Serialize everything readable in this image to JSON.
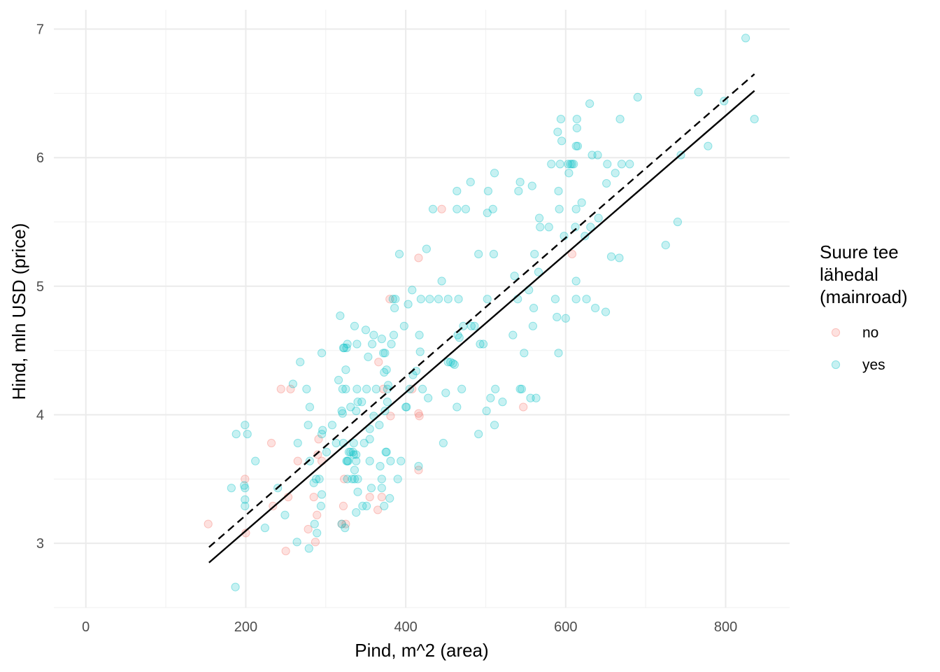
{
  "chart_data": {
    "type": "scatter",
    "xlabel": "Pind, m^2 (area)",
    "ylabel": "Hind, mln USD (price)",
    "xlim": [
      -40,
      880
    ],
    "ylim": [
      2.5,
      7.15
    ],
    "x_ticks": [
      0,
      200,
      400,
      600,
      800
    ],
    "x_tick_labels": [
      "0",
      "200",
      "400",
      "600",
      "800"
    ],
    "y_ticks": [
      3,
      4,
      5,
      6,
      7
    ],
    "y_tick_labels": [
      "3",
      "4",
      "5",
      "6",
      "7"
    ],
    "grid": true,
    "legend": {
      "title": [
        "Suure tee",
        "lähedal",
        "(mainroad)"
      ],
      "placement": "right",
      "entries": [
        {
          "label": "no",
          "color": "#F8766D"
        },
        {
          "label": "yes",
          "color": "#00BFC4"
        }
      ]
    },
    "lines": [
      {
        "style": "dashed",
        "color": "#000000",
        "x": [
          154,
          836
        ],
        "y": [
          2.97,
          6.65
        ]
      },
      {
        "style": "solid",
        "color": "#000000",
        "x": [
          154,
          836
        ],
        "y": [
          2.85,
          6.52
        ]
      }
    ],
    "series": [
      {
        "name": "no",
        "color": "#F8766D",
        "points": [
          [
            153,
            3.15
          ],
          [
            200,
            3.08
          ],
          [
            199,
            3.5
          ],
          [
            232,
            3.78
          ],
          [
            234,
            3.29
          ],
          [
            244,
            4.2
          ],
          [
            256,
            4.2
          ],
          [
            250,
            2.94
          ],
          [
            253,
            3.36
          ],
          [
            265,
            3.64
          ],
          [
            278,
            3.11
          ],
          [
            285,
            3.36
          ],
          [
            287,
            3.01
          ],
          [
            289,
            3.22
          ],
          [
            291,
            3.81
          ],
          [
            290,
            3.69
          ],
          [
            295,
            3.64
          ],
          [
            320,
            3.15
          ],
          [
            322,
            3.29
          ],
          [
            323,
            3.5
          ],
          [
            325,
            3.15
          ],
          [
            355,
            3.36
          ],
          [
            365,
            3.26
          ],
          [
            370,
            3.36
          ],
          [
            366,
            4.41
          ],
          [
            372,
            4.2
          ],
          [
            380,
            4.9
          ],
          [
            381,
            3.99
          ],
          [
            408,
            4.2
          ],
          [
            416,
            5.22
          ],
          [
            417,
            3.99
          ],
          [
            416,
            4.01
          ],
          [
            416,
            3.57
          ],
          [
            445,
            5.6
          ],
          [
            547,
            4.06
          ],
          [
            608,
            5.25
          ]
        ]
      },
      {
        "name": "yes",
        "color": "#00BFC4",
        "points": [
          [
            187,
            2.66
          ],
          [
            182,
            3.43
          ],
          [
            188,
            3.85
          ],
          [
            199,
            3.29
          ],
          [
            199,
            3.34
          ],
          [
            198,
            3.45
          ],
          [
            199,
            3.43
          ],
          [
            199,
            3.92
          ],
          [
            202,
            3.85
          ],
          [
            212,
            3.64
          ],
          [
            224,
            3.12
          ],
          [
            240,
            3.43
          ],
          [
            249,
            3.22
          ],
          [
            259,
            4.24
          ],
          [
            264,
            3.01
          ],
          [
            265,
            3.78
          ],
          [
            268,
            4.41
          ],
          [
            276,
            4.2
          ],
          [
            278,
            3.92
          ],
          [
            280,
            4.06
          ],
          [
            279,
            2.96
          ],
          [
            280,
            3.64
          ],
          [
            285,
            3.47
          ],
          [
            286,
            3.15
          ],
          [
            288,
            3.5
          ],
          [
            289,
            3.08
          ],
          [
            292,
            3.5
          ],
          [
            294,
            3.29
          ],
          [
            295,
            3.38
          ],
          [
            295,
            3.85
          ],
          [
            296,
            3.88
          ],
          [
            295,
            4.48
          ],
          [
            301,
            3.71
          ],
          [
            308,
            3.92
          ],
          [
            313,
            3.78
          ],
          [
            316,
            4.27
          ],
          [
            318,
            4.77
          ],
          [
            320,
            3.15
          ],
          [
            320,
            4.03
          ],
          [
            321,
            4.01
          ],
          [
            321,
            4.2
          ],
          [
            322,
            4.52
          ],
          [
            322,
            3.78
          ],
          [
            323,
            4.52
          ],
          [
            324,
            3.12
          ],
          [
            325,
            4.35
          ],
          [
            325,
            4.2
          ],
          [
            326,
            3.64
          ],
          [
            327,
            3.64
          ],
          [
            326,
            4.52
          ],
          [
            327,
            4.55
          ],
          [
            327,
            3.5
          ],
          [
            328,
            3.64
          ],
          [
            329,
            3.71
          ],
          [
            331,
            4.06
          ],
          [
            331,
            3.71
          ],
          [
            333,
            3.5
          ],
          [
            334,
            3.71
          ],
          [
            335,
            3.78
          ],
          [
            335,
            3.69
          ],
          [
            336,
            4.69
          ],
          [
            336,
            3.57
          ],
          [
            336,
            3.5
          ],
          [
            338,
            3.64
          ],
          [
            338,
            3.69
          ],
          [
            338,
            3.24
          ],
          [
            338,
            4.03
          ],
          [
            339,
            4.55
          ],
          [
            339,
            4.2
          ],
          [
            340,
            3.4
          ],
          [
            340,
            3.5
          ],
          [
            340,
            4.1
          ],
          [
            346,
            3.29
          ],
          [
            345,
            4.1
          ],
          [
            348,
            3.78
          ],
          [
            350,
            4.66
          ],
          [
            351,
            4.2
          ],
          [
            351,
            3.29
          ],
          [
            353,
            4.45
          ],
          [
            355,
            3.81
          ],
          [
            355,
            3.89
          ],
          [
            355,
            3.64
          ],
          [
            357,
            3.43
          ],
          [
            358,
            4.55
          ],
          [
            360,
            4.62
          ],
          [
            360,
            3.99
          ],
          [
            363,
            4.2
          ],
          [
            367,
            3.92
          ],
          [
            368,
            3.6
          ],
          [
            370,
            4.59
          ],
          [
            370,
            3.5
          ],
          [
            370,
            3.43
          ],
          [
            372,
            4.48
          ],
          [
            373,
            4.33
          ],
          [
            373,
            3.29
          ],
          [
            374,
            4.48
          ],
          [
            374,
            4.03
          ],
          [
            375,
            3.71
          ],
          [
            376,
            3.71
          ],
          [
            376,
            4.35
          ],
          [
            377,
            4.1
          ],
          [
            377,
            4.2
          ],
          [
            378,
            4.23
          ],
          [
            380,
            3.35
          ],
          [
            381,
            3.64
          ],
          [
            382,
            4.55
          ],
          [
            384,
            4.9
          ],
          [
            385,
            4.62
          ],
          [
            386,
            4.83
          ],
          [
            387,
            4.9
          ],
          [
            390,
            3.5
          ],
          [
            392,
            5.25
          ],
          [
            394,
            3.64
          ],
          [
            398,
            4.69
          ],
          [
            400,
            4.06
          ],
          [
            401,
            4.06
          ],
          [
            403,
            4.86
          ],
          [
            405,
            4.2
          ],
          [
            408,
            4.97
          ],
          [
            409,
            4.31
          ],
          [
            413,
            4.34
          ],
          [
            416,
            3.6
          ],
          [
            417,
            4.62
          ],
          [
            418,
            4.49
          ],
          [
            419,
            4.9
          ],
          [
            421,
            4.2
          ],
          [
            426,
            5.29
          ],
          [
            428,
            4.13
          ],
          [
            430,
            4.9
          ],
          [
            434,
            5.6
          ],
          [
            441,
            4.9
          ],
          [
            445,
            5.04
          ],
          [
            447,
            3.78
          ],
          [
            450,
            4.17
          ],
          [
            453,
            4.9
          ],
          [
            453,
            4.41
          ],
          [
            456,
            4.41
          ],
          [
            459,
            4.4
          ],
          [
            461,
            4.39
          ],
          [
            464,
            4.06
          ],
          [
            464,
            5.6
          ],
          [
            464,
            5.74
          ],
          [
            465,
            4.62
          ],
          [
            466,
            4.9
          ],
          [
            467,
            4.6
          ],
          [
            470,
            4.2
          ],
          [
            472,
            4.69
          ],
          [
            475,
            5.6
          ],
          [
            481,
            5.81
          ],
          [
            482,
            4.69
          ],
          [
            486,
            4.69
          ],
          [
            491,
            3.85
          ],
          [
            491,
            5.25
          ],
          [
            493,
            4.55
          ],
          [
            497,
            4.55
          ],
          [
            501,
            4.03
          ],
          [
            502,
            4.9
          ],
          [
            502,
            5.57
          ],
          [
            503,
            5.74
          ],
          [
            506,
            4.13
          ],
          [
            509,
            5.6
          ],
          [
            510,
            5.25
          ],
          [
            511,
            3.92
          ],
          [
            511,
            5.88
          ],
          [
            512,
            4.2
          ],
          [
            521,
            4.1
          ],
          [
            534,
            4.62
          ],
          [
            536,
            5.08
          ],
          [
            540,
            4.9
          ],
          [
            541,
            5.74
          ],
          [
            543,
            4.2
          ],
          [
            543,
            5.81
          ],
          [
            545,
            4.2
          ],
          [
            548,
            4.48
          ],
          [
            554,
            4.97
          ],
          [
            556,
            4.13
          ],
          [
            558,
            5.78
          ],
          [
            559,
            4.69
          ],
          [
            560,
            4.83
          ],
          [
            561,
            5.25
          ],
          [
            563,
            4.13
          ],
          [
            566,
            5.11
          ],
          [
            567,
            5.53
          ],
          [
            568,
            5.46
          ],
          [
            579,
            5.46
          ],
          [
            582,
            5.95
          ],
          [
            587,
            4.9
          ],
          [
            589,
            4.76
          ],
          [
            590,
            6.2
          ],
          [
            591,
            5.74
          ],
          [
            591,
            4.48
          ],
          [
            592,
            5.6
          ],
          [
            593,
            5.95
          ],
          [
            594,
            6.3
          ],
          [
            595,
            6.13
          ],
          [
            598,
            5.39
          ],
          [
            600,
            4.75
          ],
          [
            603,
            5.95
          ],
          [
            604,
            5.88
          ],
          [
            606,
            5.95
          ],
          [
            608,
            5.95
          ],
          [
            610,
            5.95
          ],
          [
            612,
            5.46
          ],
          [
            613,
            5.6
          ],
          [
            613,
            4.9
          ],
          [
            613,
            6.09
          ],
          [
            614,
            6.23
          ],
          [
            614,
            6.3
          ],
          [
            615,
            6.09
          ],
          [
            613,
            5.04
          ],
          [
            620,
            5.65
          ],
          [
            624,
            5.39
          ],
          [
            626,
            4.9
          ],
          [
            630,
            6.42
          ],
          [
            631,
            5.46
          ],
          [
            633,
            6.02
          ],
          [
            637,
            4.83
          ],
          [
            640,
            6.02
          ],
          [
            641,
            5.53
          ],
          [
            650,
            4.8
          ],
          [
            651,
            5.8
          ],
          [
            652,
            5.95
          ],
          [
            657,
            5.23
          ],
          [
            662,
            5.88
          ],
          [
            667,
            5.22
          ],
          [
            668,
            6.3
          ],
          [
            670,
            5.95
          ],
          [
            680,
            5.95
          ],
          [
            690,
            6.47
          ],
          [
            725,
            5.32
          ],
          [
            740,
            5.5
          ],
          [
            744,
            6.02
          ],
          [
            766,
            6.51
          ],
          [
            778,
            6.09
          ],
          [
            798,
            6.44
          ],
          [
            825,
            6.93
          ],
          [
            836,
            6.3
          ]
        ]
      }
    ]
  }
}
